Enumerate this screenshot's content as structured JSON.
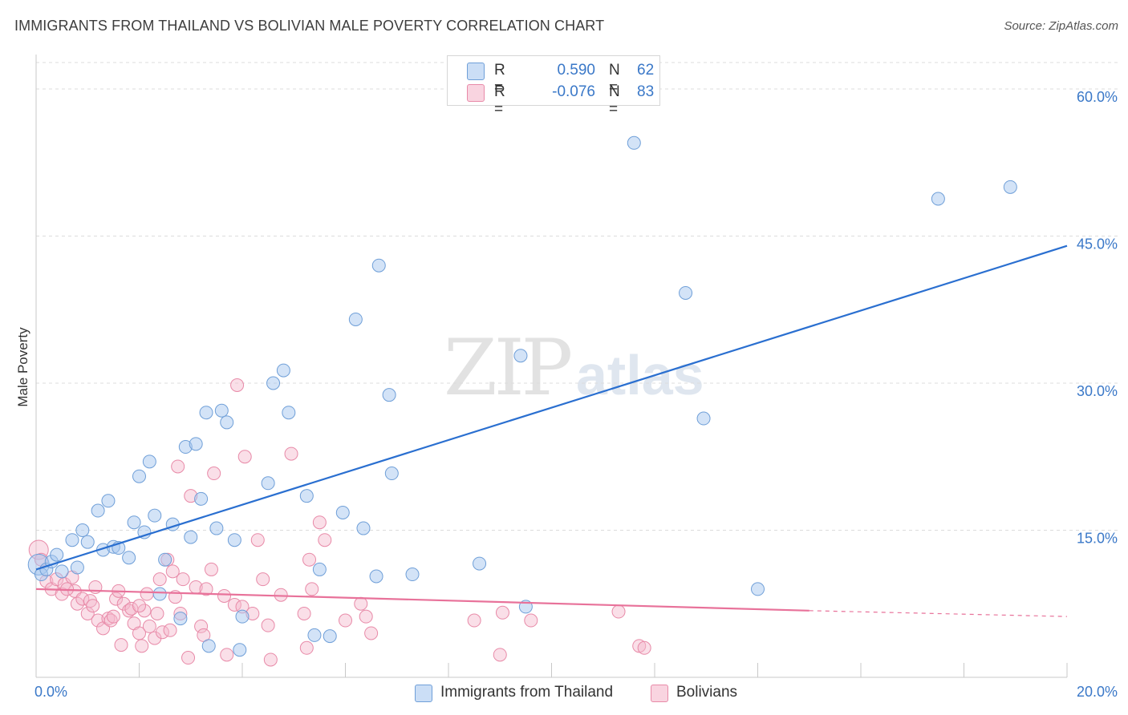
{
  "header": {
    "title": "IMMIGRANTS FROM THAILAND VS BOLIVIAN MALE POVERTY CORRELATION CHART",
    "source": "Source: ZipAtlas.com"
  },
  "watermark": {
    "zip": "ZIP",
    "atlas": "atlas"
  },
  "legend": {
    "rows": [
      {
        "r_label": "R =",
        "r_value": "0.590",
        "n_label": "N =",
        "n_value": "62",
        "color": "#a8c8f0",
        "text_color": "#3a78c8"
      },
      {
        "r_label": "R =",
        "r_value": "-0.076",
        "n_label": "N =",
        "n_value": "83",
        "color": "#f5b8cc",
        "text_color": "#3a78c8"
      }
    ]
  },
  "bottom_legend": [
    {
      "label": "Immigrants from Thailand",
      "color": "#a8c8f0"
    },
    {
      "label": "Bolivians",
      "color": "#f5b8cc"
    }
  ],
  "colors": {
    "blue_fill": "#a8c8f0",
    "blue_stroke": "#6f9fd8",
    "blue_line": "#2a6fd0",
    "pink_fill": "#f5b8cc",
    "pink_stroke": "#e88aa8",
    "pink_line": "#e8729a",
    "grid": "#dcdcdc",
    "tick_text": "#3a78c8"
  },
  "chart_data": {
    "type": "scatter",
    "title": "IMMIGRANTS FROM THAILAND VS BOLIVIAN MALE POVERTY CORRELATION CHART",
    "xlabel": "",
    "ylabel": "Male Poverty",
    "xlim": [
      0,
      20
    ],
    "ylim": [
      0,
      60
    ],
    "x_tick_labels": [
      "0.0%",
      "20.0%"
    ],
    "y_ticks": [
      15,
      30,
      45,
      60
    ],
    "y_tick_labels": [
      "15.0%",
      "30.0%",
      "45.0%",
      "60.0%"
    ],
    "grid": true,
    "series": [
      {
        "name": "Immigrants from Thailand",
        "points": [
          [
            0.05,
            11.5
          ],
          [
            0.1,
            10.5
          ],
          [
            0.2,
            11.0
          ],
          [
            0.3,
            11.8
          ],
          [
            0.4,
            12.5
          ],
          [
            0.5,
            10.8
          ],
          [
            0.7,
            14.0
          ],
          [
            0.8,
            11.2
          ],
          [
            0.9,
            15.0
          ],
          [
            1.0,
            13.8
          ],
          [
            1.2,
            17.0
          ],
          [
            1.3,
            13.0
          ],
          [
            1.4,
            18.0
          ],
          [
            1.5,
            13.3
          ],
          [
            1.6,
            13.2
          ],
          [
            1.8,
            12.2
          ],
          [
            1.9,
            15.8
          ],
          [
            2.0,
            20.5
          ],
          [
            2.1,
            14.8
          ],
          [
            2.2,
            22.0
          ],
          [
            2.3,
            16.5
          ],
          [
            2.4,
            8.5
          ],
          [
            2.5,
            12.0
          ],
          [
            2.65,
            15.6
          ],
          [
            2.8,
            6.0
          ],
          [
            2.9,
            23.5
          ],
          [
            3.0,
            14.3
          ],
          [
            3.1,
            23.8
          ],
          [
            3.2,
            18.2
          ],
          [
            3.3,
            27.0
          ],
          [
            3.35,
            3.2
          ],
          [
            3.5,
            15.2
          ],
          [
            3.6,
            27.2
          ],
          [
            3.7,
            26.0
          ],
          [
            3.85,
            14.0
          ],
          [
            3.95,
            2.8
          ],
          [
            4.0,
            6.2
          ],
          [
            4.5,
            19.8
          ],
          [
            4.6,
            30.0
          ],
          [
            4.8,
            31.3
          ],
          [
            4.9,
            27.0
          ],
          [
            5.25,
            18.5
          ],
          [
            5.4,
            4.3
          ],
          [
            5.5,
            11.0
          ],
          [
            5.7,
            4.2
          ],
          [
            5.95,
            16.8
          ],
          [
            6.2,
            36.5
          ],
          [
            6.35,
            15.2
          ],
          [
            6.6,
            10.3
          ],
          [
            6.65,
            42.0
          ],
          [
            6.85,
            28.8
          ],
          [
            6.9,
            20.8
          ],
          [
            7.3,
            10.5
          ],
          [
            8.6,
            11.6
          ],
          [
            9.4,
            32.8
          ],
          [
            9.5,
            7.2
          ],
          [
            11.6,
            54.5
          ],
          [
            12.6,
            39.2
          ],
          [
            12.95,
            26.4
          ],
          [
            14.0,
            9.0
          ],
          [
            17.5,
            48.8
          ],
          [
            18.9,
            50.0
          ]
        ],
        "trend": [
          [
            0,
            11.0
          ],
          [
            20,
            44.0
          ]
        ]
      },
      {
        "name": "Bolivians",
        "points": [
          [
            0.05,
            13.0
          ],
          [
            0.1,
            12.0
          ],
          [
            0.2,
            9.8
          ],
          [
            0.3,
            9.0
          ],
          [
            0.4,
            10.0
          ],
          [
            0.5,
            8.5
          ],
          [
            0.55,
            9.5
          ],
          [
            0.7,
            10.2
          ],
          [
            0.75,
            8.8
          ],
          [
            0.8,
            7.5
          ],
          [
            0.9,
            8.0
          ],
          [
            1.0,
            6.5
          ],
          [
            1.05,
            7.8
          ],
          [
            1.1,
            7.3
          ],
          [
            1.15,
            9.2
          ],
          [
            1.2,
            5.8
          ],
          [
            1.3,
            5.0
          ],
          [
            1.4,
            6.0
          ],
          [
            1.45,
            5.8
          ],
          [
            1.5,
            6.2
          ],
          [
            1.55,
            8.0
          ],
          [
            1.6,
            8.8
          ],
          [
            1.65,
            3.3
          ],
          [
            1.7,
            7.5
          ],
          [
            1.8,
            6.8
          ],
          [
            1.85,
            7.0
          ],
          [
            1.9,
            5.5
          ],
          [
            2.0,
            4.5
          ],
          [
            2.05,
            3.2
          ],
          [
            2.1,
            6.8
          ],
          [
            2.15,
            8.5
          ],
          [
            2.2,
            5.2
          ],
          [
            2.3,
            4.0
          ],
          [
            2.35,
            6.5
          ],
          [
            2.4,
            10.0
          ],
          [
            2.45,
            4.6
          ],
          [
            2.55,
            12.0
          ],
          [
            2.6,
            4.8
          ],
          [
            2.65,
            10.8
          ],
          [
            2.7,
            8.2
          ],
          [
            2.75,
            21.5
          ],
          [
            2.8,
            6.5
          ],
          [
            2.85,
            10.0
          ],
          [
            2.95,
            2.0
          ],
          [
            3.0,
            18.5
          ],
          [
            3.1,
            9.2
          ],
          [
            3.2,
            5.2
          ],
          [
            3.25,
            4.3
          ],
          [
            3.3,
            9.0
          ],
          [
            3.4,
            11.0
          ],
          [
            3.45,
            20.8
          ],
          [
            3.65,
            8.3
          ],
          [
            3.7,
            2.3
          ],
          [
            3.85,
            7.4
          ],
          [
            3.9,
            29.8
          ],
          [
            4.0,
            7.2
          ],
          [
            4.05,
            22.5
          ],
          [
            4.2,
            6.5
          ],
          [
            4.3,
            14.0
          ],
          [
            4.4,
            10.0
          ],
          [
            4.5,
            5.3
          ],
          [
            4.55,
            1.8
          ],
          [
            4.75,
            8.4
          ],
          [
            4.95,
            22.8
          ],
          [
            5.2,
            6.5
          ],
          [
            5.25,
            3.0
          ],
          [
            5.3,
            12.0
          ],
          [
            5.35,
            9.0
          ],
          [
            5.5,
            15.8
          ],
          [
            5.6,
            14.0
          ],
          [
            6.0,
            5.8
          ],
          [
            6.4,
            6.2
          ],
          [
            6.5,
            4.5
          ],
          [
            8.5,
            5.8
          ],
          [
            9.05,
            6.6
          ],
          [
            9.0,
            2.3
          ],
          [
            9.6,
            5.8
          ],
          [
            11.3,
            6.7
          ],
          [
            11.7,
            3.2
          ],
          [
            11.8,
            3.0
          ],
          [
            6.3,
            7.5
          ],
          [
            2.0,
            7.3
          ],
          [
            0.6,
            9.0
          ]
        ],
        "trend": [
          [
            0,
            9.0
          ],
          [
            15,
            6.8
          ]
        ],
        "trend_dashed_to": [
          20,
          6.2
        ]
      }
    ]
  }
}
